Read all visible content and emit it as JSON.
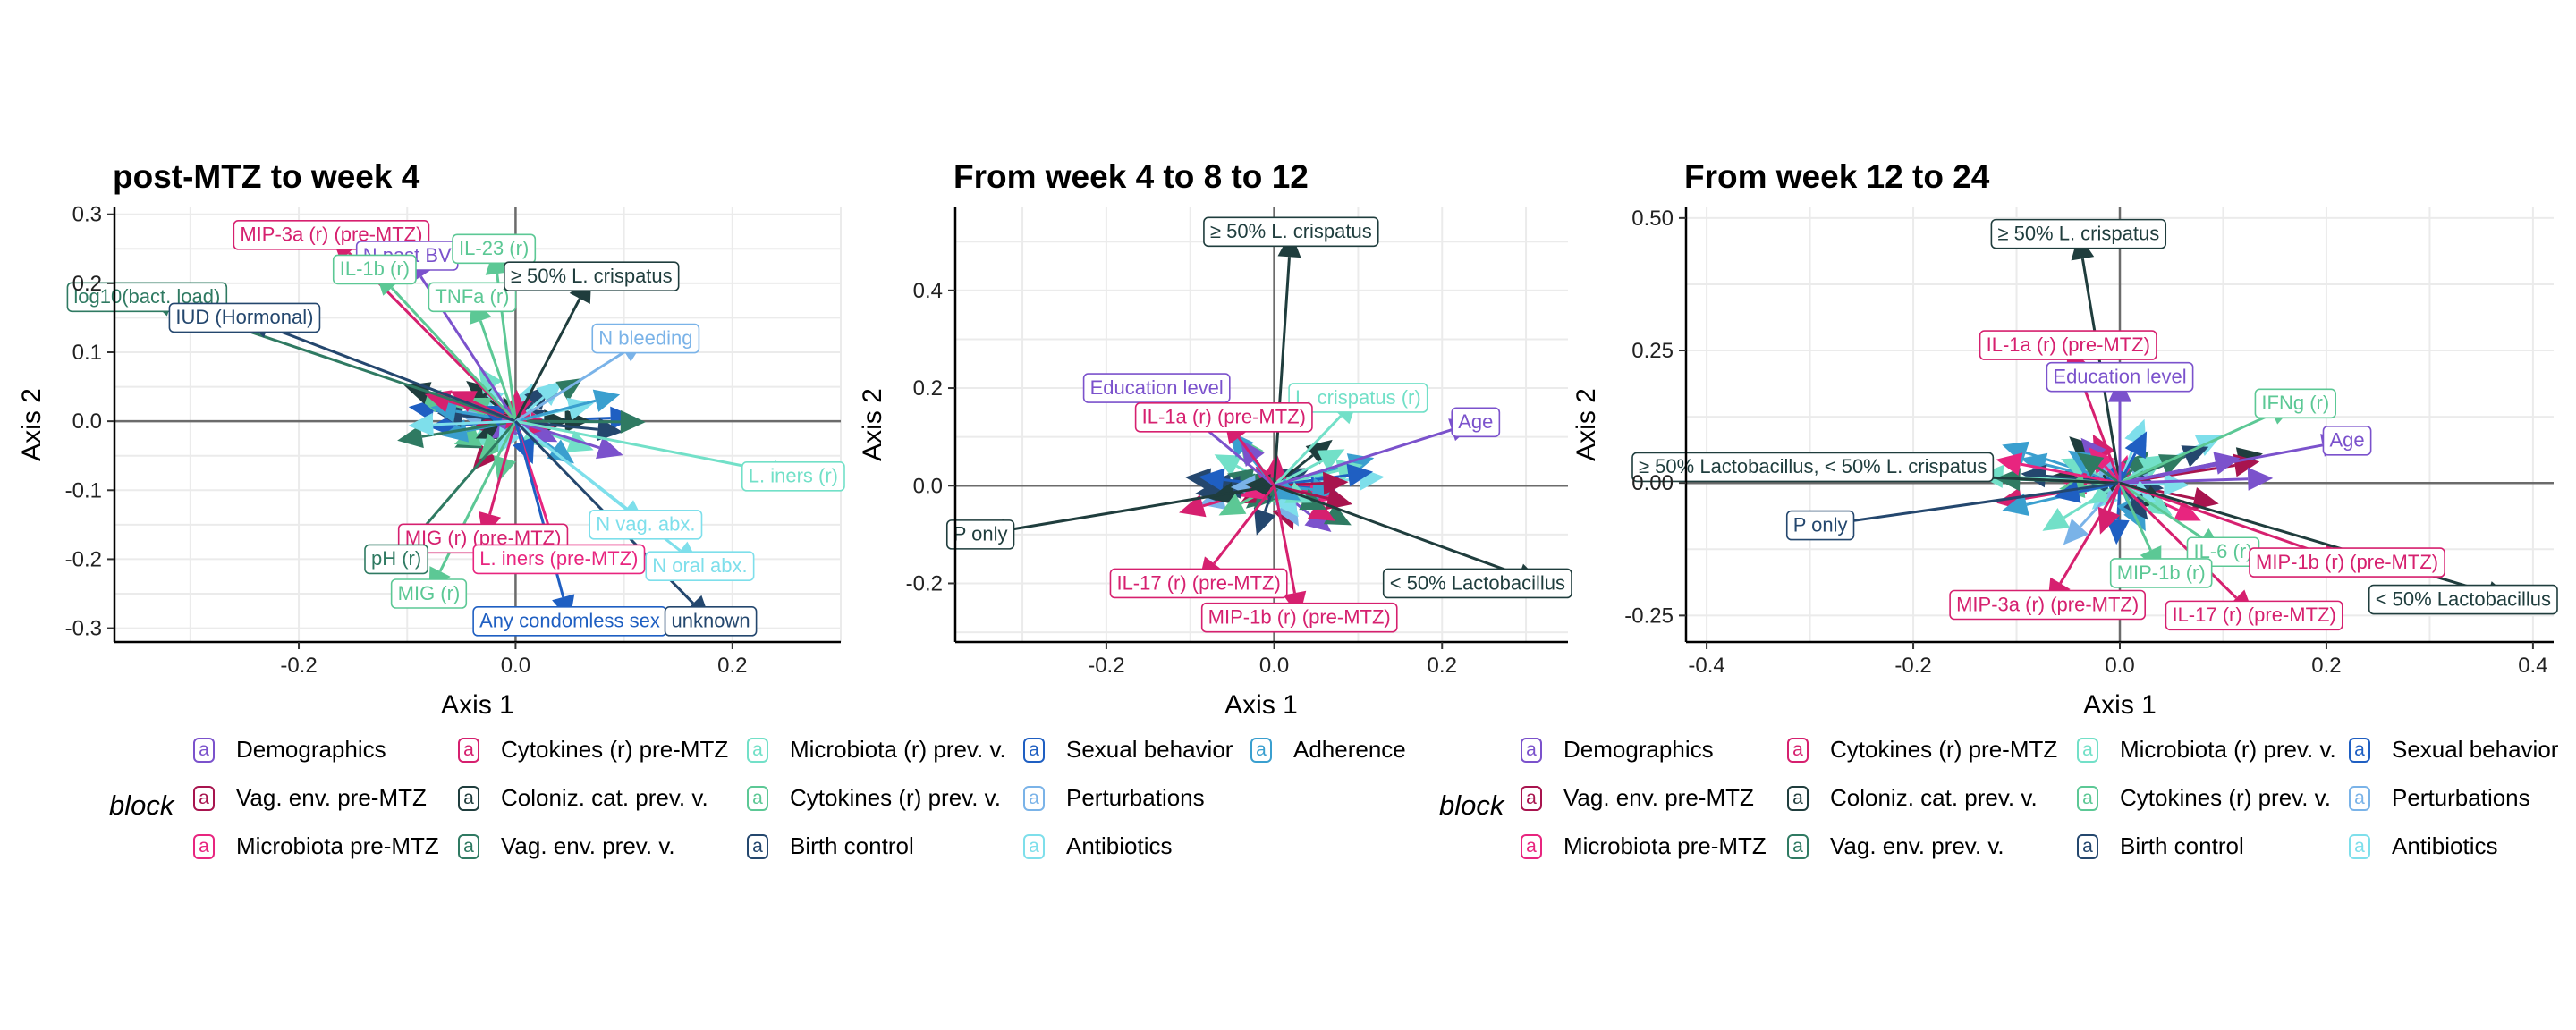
{
  "colors": {
    "Demographics": "#7B52CC",
    "Cytokines (r) pre-MTZ": "#D6206F",
    "Microbiota (r) prev. v.": "#72E0C8",
    "Sexual behavior": "#1F5FC2",
    "Adherence": "#3A9FCF",
    "Vag. env. pre-MTZ": "#A8144E",
    "Coloniz. cat. prev. v.": "#1F3D3D",
    "Cytokines (r) prev. v.": "#5CC895",
    "Perturbations": "#7AB3E8",
    "Microbiota pre-MTZ": "#E8257F",
    "Vag. env. prev. v.": "#2F7A62",
    "Birth control": "#24476E",
    "Antibiotics": "#7EDFEB"
  },
  "legend_left": {
    "title": "block",
    "key_glyph": "a",
    "items": [
      "Demographics",
      "Vag. env. pre-MTZ",
      "Microbiota pre-MTZ",
      "Cytokines (r) pre-MTZ",
      "Coloniz. cat. prev. v.",
      "Vag. env. prev. v.",
      "Microbiota (r) prev. v.",
      "Cytokines (r) prev. v.",
      "Birth control",
      "Sexual behavior",
      "Perturbations",
      "Antibiotics",
      "Adherence"
    ]
  },
  "legend_right": {
    "title": "block",
    "key_glyph": "a",
    "items": [
      "Demographics",
      "Vag. env. pre-MTZ",
      "Microbiota pre-MTZ",
      "Cytokines (r) pre-MTZ",
      "Coloniz. cat. prev. v.",
      "Vag. env. prev. v.",
      "Microbiota (r) prev. v.",
      "Cytokines (r) prev. v.",
      "Birth control",
      "Sexual behavior",
      "Perturbations",
      "Antibiotics"
    ]
  },
  "chart_data": [
    {
      "type": "scatter",
      "title": "post-MTZ to week 4",
      "xlabel": "Axis 1",
      "ylabel": "Axis 2",
      "xlim": [
        -0.37,
        0.3
      ],
      "ylim": [
        -0.32,
        0.31
      ],
      "xticks": [
        -0.2,
        0.0,
        0.2
      ],
      "xtick_labels": [
        "-0.2",
        "0.0",
        "0.2"
      ],
      "yticks": [
        -0.3,
        -0.2,
        -0.1,
        0.0,
        0.1,
        0.2,
        0.3
      ],
      "ytick_labels": [
        "-0.3",
        "-0.2",
        "-0.1",
        "0.0",
        "0.1",
        "0.2",
        "0.3"
      ],
      "grid": true,
      "labeled_vectors": [
        {
          "label": "MIP-3a (r) (pre-MTZ)",
          "block": "Cytokines (r) pre-MTZ",
          "x": -0.17,
          "y": 0.27
        },
        {
          "label": "N past BV",
          "block": "Demographics",
          "x": -0.1,
          "y": 0.24
        },
        {
          "label": "IL-23 (r)",
          "block": "Cytokines (r) prev. v.",
          "x": -0.02,
          "y": 0.25
        },
        {
          "label": "log10(bact. load)",
          "block": "Vag. env. prev. v.",
          "x": -0.34,
          "y": 0.18
        },
        {
          "label": "IL-1b (r)",
          "block": "Cytokines (r) prev. v.",
          "x": -0.13,
          "y": 0.22
        },
        {
          "label": "TNFa (r)",
          "block": "Cytokines (r) prev. v.",
          "x": -0.04,
          "y": 0.18
        },
        {
          "label": "≥ 50% L. crispatus",
          "block": "Coloniz. cat. prev. v.",
          "x": 0.07,
          "y": 0.21
        },
        {
          "label": "IUD (Hormonal)",
          "block": "Birth control",
          "x": -0.25,
          "y": 0.15
        },
        {
          "label": "N bleeding",
          "block": "Perturbations",
          "x": 0.12,
          "y": 0.12
        },
        {
          "label": "L. iners (r)",
          "block": "Microbiota (r) prev. v.",
          "x": 0.26,
          "y": -0.08
        },
        {
          "label": "MIG (r) (pre-MTZ)",
          "block": "Cytokines (r) pre-MTZ",
          "x": -0.03,
          "y": -0.17
        },
        {
          "label": "N vag. abx.",
          "block": "Antibiotics",
          "x": 0.12,
          "y": -0.15
        },
        {
          "label": "pH (r)",
          "block": "Vag. env. prev. v.",
          "x": -0.11,
          "y": -0.2
        },
        {
          "label": "L. iners (pre-MTZ)",
          "block": "Microbiota pre-MTZ",
          "x": 0.04,
          "y": -0.2
        },
        {
          "label": "N oral abx.",
          "block": "Antibiotics",
          "x": 0.17,
          "y": -0.21
        },
        {
          "label": "MIG (r)",
          "block": "Cytokines (r) prev. v.",
          "x": -0.08,
          "y": -0.25
        },
        {
          "label": "Any condomless sex",
          "block": "Sexual behavior",
          "x": 0.05,
          "y": -0.29
        },
        {
          "label": "unknown",
          "block": "Birth control",
          "x": 0.18,
          "y": -0.29
        }
      ]
    },
    {
      "type": "scatter",
      "title": "From week 4 to 8 to 12",
      "xlabel": "Axis 1",
      "ylabel": "Axis 2",
      "xlim": [
        -0.38,
        0.35
      ],
      "ylim": [
        -0.32,
        0.57
      ],
      "xticks": [
        -0.2,
        0.0,
        0.2
      ],
      "xtick_labels": [
        "-0.2",
        "0.0",
        "0.2"
      ],
      "yticks": [
        -0.2,
        0.0,
        0.2,
        0.4
      ],
      "ytick_labels": [
        "-0.2",
        "0.0",
        "0.2",
        "0.4"
      ],
      "grid": true,
      "labeled_vectors": [
        {
          "label": "≥ 50% L. crispatus",
          "block": "Coloniz. cat. prev. v.",
          "x": 0.02,
          "y": 0.52
        },
        {
          "label": "Education level",
          "block": "Demographics",
          "x": -0.14,
          "y": 0.2
        },
        {
          "label": "L. crispatus (r)",
          "block": "Microbiota (r) prev. v.",
          "x": 0.1,
          "y": 0.18
        },
        {
          "label": "Age",
          "block": "Demographics",
          "x": 0.24,
          "y": 0.13
        },
        {
          "label": "IL-1a (r) (pre-MTZ)",
          "block": "Cytokines (r) pre-MTZ",
          "x": -0.06,
          "y": 0.14
        },
        {
          "label": "P only",
          "block": "Coloniz. cat. prev. v.",
          "x": -0.35,
          "y": -0.1
        },
        {
          "label": "< 50% Lactobacillus",
          "block": "Coloniz. cat. prev. v.",
          "x": 0.32,
          "y": -0.2
        },
        {
          "label": "IL-17 (r) (pre-MTZ)",
          "block": "Cytokines (r) pre-MTZ",
          "x": -0.09,
          "y": -0.2
        },
        {
          "label": "MIP-1b (r) (pre-MTZ)",
          "block": "Cytokines (r) pre-MTZ",
          "x": 0.03,
          "y": -0.27
        }
      ]
    },
    {
      "type": "scatter",
      "title": "From week 12 to 24",
      "xlabel": "Axis 1",
      "ylabel": "Axis 2",
      "xlim": [
        -0.42,
        0.42
      ],
      "ylim": [
        -0.3,
        0.52
      ],
      "xticks": [
        -0.4,
        -0.2,
        0.0,
        0.2,
        0.4
      ],
      "xtick_labels": [
        "-0.4",
        "-0.2",
        "0.0",
        "0.2",
        "0.4"
      ],
      "yticks": [
        -0.25,
        0.0,
        0.25,
        0.5
      ],
      "ytick_labels": [
        "-0.25",
        "0.00",
        "0.25",
        "0.50"
      ],
      "grid": true,
      "labeled_vectors": [
        {
          "label": "≥ 50% L. crispatus",
          "block": "Coloniz. cat. prev. v.",
          "x": -0.04,
          "y": 0.47
        },
        {
          "label": "IL-1a (r) (pre-MTZ)",
          "block": "Cytokines (r) pre-MTZ",
          "x": -0.05,
          "y": 0.26
        },
        {
          "label": "Education level",
          "block": "Demographics",
          "x": 0.0,
          "y": 0.2
        },
        {
          "label": "IFNg (r)",
          "block": "Cytokines (r) prev. v.",
          "x": 0.17,
          "y": 0.15
        },
        {
          "label": "≥ 50% Lactobacillus, < 50% L. crispatus",
          "block": "Coloniz. cat. prev. v.",
          "x": -0.37,
          "y": 0.03
        },
        {
          "label": "Age",
          "block": "Demographics",
          "x": 0.22,
          "y": 0.08
        },
        {
          "label": "P only",
          "block": "Birth control",
          "x": -0.29,
          "y": -0.08
        },
        {
          "label": "IL-6 (r)",
          "block": "Cytokines (r) prev. v.",
          "x": 0.1,
          "y": -0.13
        },
        {
          "label": "MIP-1b (r) (pre-MTZ)",
          "block": "Cytokines (r) pre-MTZ",
          "x": 0.22,
          "y": -0.15
        },
        {
          "label": "MIP-3a (r) (pre-MTZ)",
          "block": "Cytokines (r) pre-MTZ",
          "x": -0.07,
          "y": -0.23
        },
        {
          "label": "MIP-1b (r)",
          "block": "Cytokines (r) prev. v.",
          "x": 0.04,
          "y": -0.17
        },
        {
          "label": "IL-17 (r) (pre-MTZ)",
          "block": "Cytokines (r) pre-MTZ",
          "x": 0.13,
          "y": -0.25
        },
        {
          "label": "< 50% Lactobacillus",
          "block": "Coloniz. cat. prev. v.",
          "x": 0.38,
          "y": -0.22
        }
      ]
    }
  ]
}
